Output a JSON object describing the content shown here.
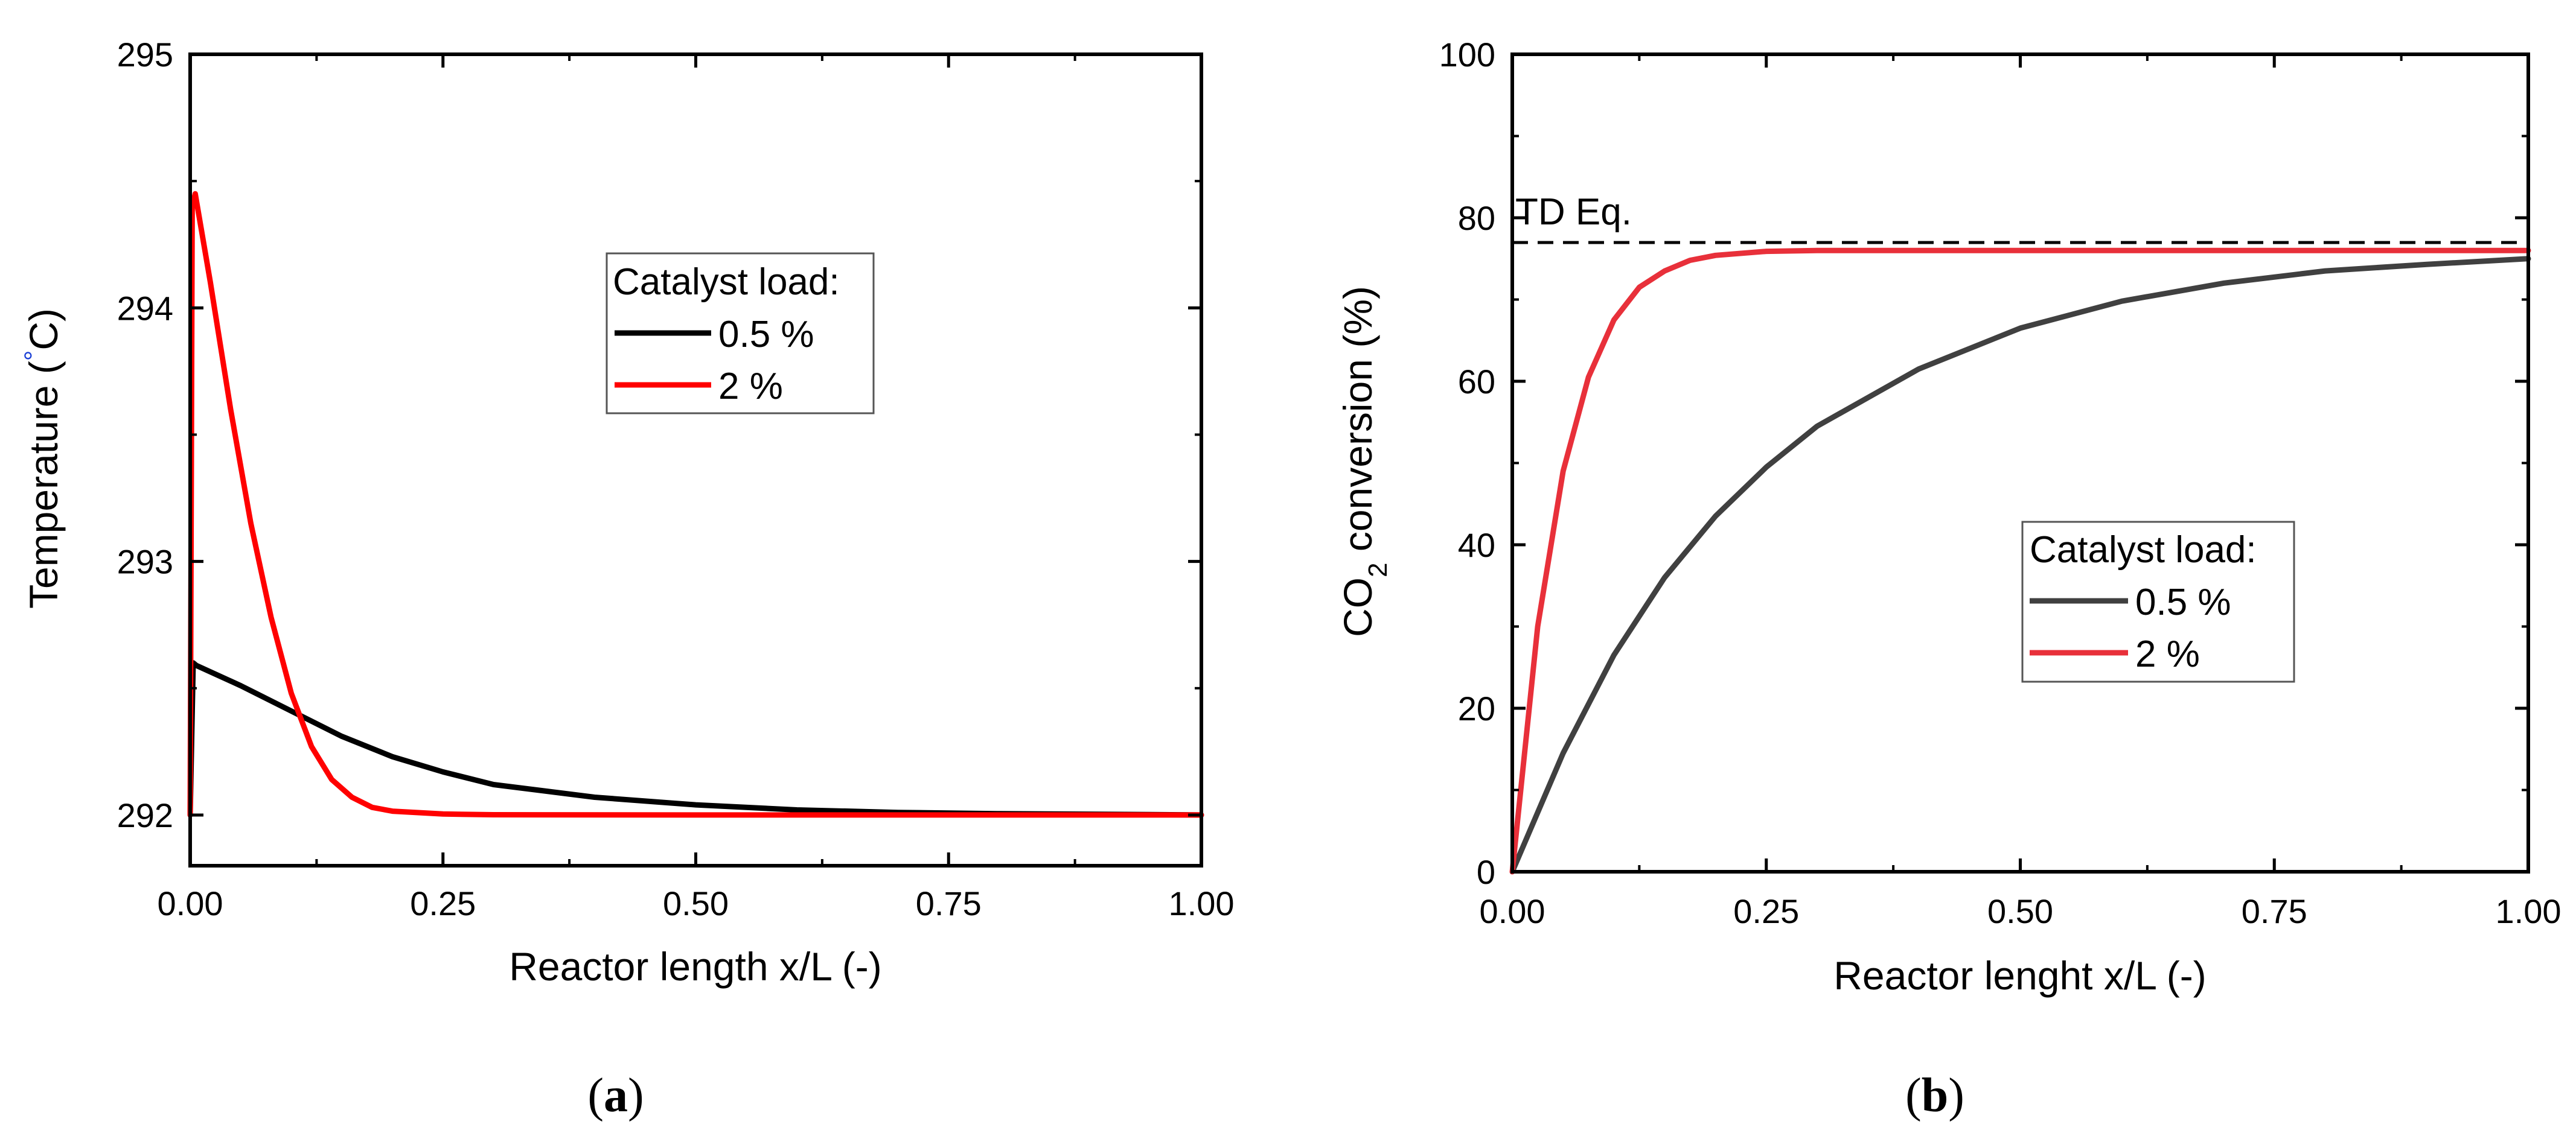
{
  "chart_data": [
    {
      "panel": "a",
      "panel_label": "a",
      "type": "line",
      "xlabel": "Reactor length x/L (-)",
      "ylabel": "Temperature (°C)",
      "ylabel_main": "Temperature (",
      "ylabel_degree": "°",
      "ylabel_unit": "C)",
      "xlim": [
        0,
        1
      ],
      "ylim": [
        291.8,
        295
      ],
      "xticks": [
        0,
        0.25,
        0.5,
        0.75,
        1.0
      ],
      "xtick_labels": [
        "0.00",
        "0.25",
        "0.50",
        "0.75",
        "1.00"
      ],
      "yticks": [
        292,
        293,
        294,
        295
      ],
      "ytick_labels": [
        "292",
        "293",
        "294",
        "295"
      ],
      "legend": {
        "title": "Catalyst load:",
        "position": "upper-middle"
      },
      "series": [
        {
          "name": "0.5 %",
          "color": "#000000",
          "x": [
            0,
            0.003,
            0.006,
            0.05,
            0.1,
            0.15,
            0.2,
            0.25,
            0.3,
            0.4,
            0.5,
            0.6,
            0.7,
            0.8,
            0.9,
            1.0
          ],
          "y": [
            292.0,
            292.6,
            292.59,
            292.51,
            292.41,
            292.31,
            292.23,
            292.17,
            292.12,
            292.07,
            292.04,
            292.02,
            292.01,
            292.005,
            292.003,
            292.0
          ]
        },
        {
          "name": "2 %",
          "color": "#ff0000",
          "x": [
            0,
            0.002,
            0.005,
            0.02,
            0.04,
            0.06,
            0.08,
            0.1,
            0.12,
            0.14,
            0.16,
            0.18,
            0.2,
            0.25,
            0.3,
            0.5,
            1.0
          ],
          "y": [
            292.0,
            294.4,
            294.45,
            294.1,
            293.6,
            293.15,
            292.78,
            292.48,
            292.27,
            292.14,
            292.07,
            292.03,
            292.015,
            292.004,
            292.001,
            292.0,
            292.0
          ]
        }
      ]
    },
    {
      "panel": "b",
      "panel_label": "b",
      "type": "line",
      "xlabel": "Reactor lenght x/L (-)",
      "ylabel_main": "CO",
      "ylabel_sub": "2",
      "ylabel_rest": " conversion (%)",
      "xlim": [
        0,
        1
      ],
      "ylim": [
        0,
        100
      ],
      "xticks": [
        0,
        0.25,
        0.5,
        0.75,
        1.0
      ],
      "xtick_labels": [
        "0.00",
        "0.25",
        "0.50",
        "0.75",
        "1.00"
      ],
      "yticks": [
        0,
        20,
        40,
        60,
        80,
        100
      ],
      "ytick_labels": [
        "0",
        "20",
        "40",
        "60",
        "80",
        "100"
      ],
      "legend": {
        "title": "Catalyst load:",
        "position": "center-right"
      },
      "annotation": {
        "text": "TD Eq.",
        "y": 77,
        "style": "dashed"
      },
      "series": [
        {
          "name": "0.5 %",
          "color": "#404040",
          "x": [
            0,
            0.05,
            0.1,
            0.15,
            0.2,
            0.25,
            0.3,
            0.4,
            0.5,
            0.6,
            0.7,
            0.8,
            0.9,
            1.0
          ],
          "y": [
            0,
            14.5,
            26.5,
            36,
            43.5,
            49.5,
            54.5,
            61.5,
            66.5,
            69.8,
            72,
            73.5,
            74.3,
            75
          ]
        },
        {
          "name": "2 %",
          "color": "#e8303a",
          "x": [
            0,
            0.025,
            0.05,
            0.075,
            0.1,
            0.125,
            0.15,
            0.175,
            0.2,
            0.25,
            0.3,
            0.4,
            0.5,
            1.0
          ],
          "y": [
            0,
            30,
            49,
            60.5,
            67.5,
            71.5,
            73.5,
            74.8,
            75.4,
            75.9,
            76,
            76,
            76,
            76
          ]
        }
      ]
    }
  ]
}
